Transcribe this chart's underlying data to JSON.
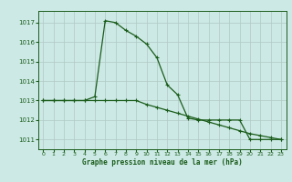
{
  "title": "Graphe pression niveau de la mer (hPa)",
  "background_color": "#cce9e5",
  "grid_color": "#b0c8c4",
  "line_color": "#1a5c1a",
  "x_ticks": [
    0,
    1,
    2,
    3,
    4,
    5,
    6,
    7,
    8,
    9,
    10,
    11,
    12,
    13,
    14,
    15,
    16,
    17,
    18,
    19,
    20,
    21,
    22,
    23
  ],
  "y_ticks": [
    1011,
    1012,
    1013,
    1014,
    1015,
    1016,
    1017
  ],
  "ylim": [
    1010.5,
    1017.6
  ],
  "xlim": [
    -0.5,
    23.5
  ],
  "series1_x": [
    0,
    1,
    2,
    3,
    4,
    5,
    6,
    7,
    8,
    9,
    10,
    11,
    12,
    13,
    14,
    15,
    16,
    17,
    18,
    19,
    20,
    21,
    22,
    23
  ],
  "series1_y": [
    1013,
    1013,
    1013,
    1013,
    1013,
    1013.2,
    1017.1,
    1017.0,
    1016.6,
    1016.3,
    1015.9,
    1015.2,
    1013.8,
    1013.3,
    1012.1,
    1012.0,
    1012.0,
    1012.0,
    1012.0,
    1012.0,
    1011.0,
    1011.0,
    1011.0,
    1011.0
  ],
  "series2_x": [
    0,
    1,
    2,
    3,
    4,
    5,
    6,
    7,
    8,
    9,
    10,
    11,
    12,
    13,
    14,
    15,
    16,
    17,
    18,
    19,
    20,
    21,
    22,
    23
  ],
  "series2_y": [
    1013,
    1013,
    1013,
    1013,
    1013,
    1013,
    1013,
    1013,
    1013,
    1013,
    1012.8,
    1012.65,
    1012.5,
    1012.35,
    1012.2,
    1012.05,
    1011.9,
    1011.75,
    1011.6,
    1011.45,
    1011.3,
    1011.2,
    1011.1,
    1011.0
  ]
}
